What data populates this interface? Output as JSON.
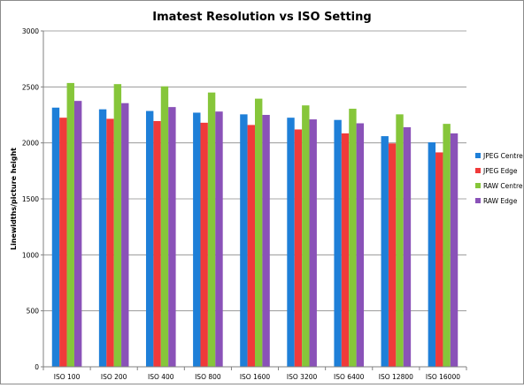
{
  "chart_data": {
    "type": "bar",
    "title": "Imatest Resolution vs ISO Setting",
    "xlabel": "",
    "ylabel": "Linewidths/picture height",
    "ylim": [
      0,
      3000
    ],
    "yticks": [
      0,
      500,
      1000,
      1500,
      2000,
      2500,
      3000
    ],
    "grid": true,
    "legend_position": "right",
    "categories": [
      "ISO 100",
      "ISO 200",
      "ISO 400",
      "ISO 800",
      "ISO 1600",
      "ISO 3200",
      "ISO 6400",
      "ISO 12800",
      "ISO 16000"
    ],
    "series": [
      {
        "name": "JPEG Centre",
        "color": "#1e7fd8",
        "values": [
          2315,
          2300,
          2285,
          2270,
          2255,
          2225,
          2205,
          2060,
          2005
        ]
      },
      {
        "name": "JPEG Edge",
        "color": "#f03a3a",
        "values": [
          2225,
          2215,
          2195,
          2180,
          2160,
          2120,
          2085,
          1995,
          1915
        ]
      },
      {
        "name": "RAW Centre",
        "color": "#86c63a",
        "values": [
          2535,
          2525,
          2505,
          2450,
          2395,
          2335,
          2305,
          2255,
          2170
        ]
      },
      {
        "name": "RAW Edge",
        "color": "#8a52b8",
        "values": [
          2375,
          2355,
          2320,
          2280,
          2250,
          2210,
          2175,
          2140,
          2085
        ]
      }
    ]
  }
}
